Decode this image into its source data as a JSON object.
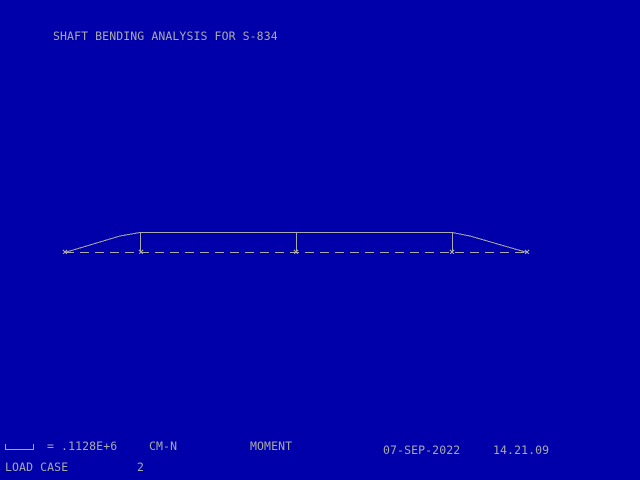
{
  "title": "SHAFT BENDING ANALYSIS FOR S-834",
  "footer": {
    "scale_symbol": "scale-bar-icon",
    "scale_value": "= .1128E+6",
    "units": "CM-N",
    "quantity": "MOMENT",
    "date": "07-SEP-2022",
    "time": "14.21.09",
    "load_case_label": "LOAD CASE",
    "load_case_value": "2"
  },
  "colors": {
    "background": "#0000aa",
    "foreground": "#aaaaaa"
  }
}
